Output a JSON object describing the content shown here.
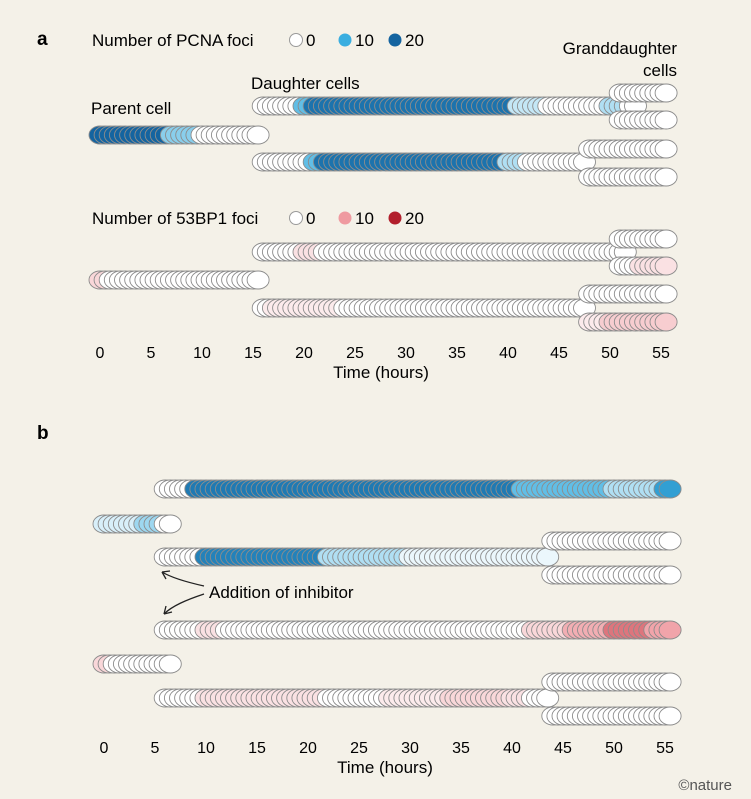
{
  "chart_data": [
    {
      "panel": "a",
      "type": "scatter",
      "xlabel": "Time (hours)",
      "xlim": [
        0,
        55
      ],
      "xticks": [
        0,
        5,
        10,
        15,
        20,
        25,
        30,
        35,
        40,
        45,
        50,
        55
      ],
      "legends": [
        {
          "title": "Number of PCNA foci",
          "entries": [
            {
              "label": "0",
              "color": "#ffffff"
            },
            {
              "label": "10",
              "color": "#3aaee0"
            },
            {
              "label": "20",
              "color": "#1464a0"
            }
          ]
        },
        {
          "title": "Number of 53BP1 foci",
          "entries": [
            {
              "label": "0",
              "color": "#ffffff"
            },
            {
              "label": "10",
              "color": "#ef9aa0"
            },
            {
              "label": "20",
              "color": "#b21f2c"
            }
          ]
        }
      ],
      "annotations": [
        "Parent cell",
        "Daughter cells",
        "Granddaughter cells"
      ],
      "series": [
        {
          "marker": "PCNA",
          "lineage": "parent",
          "start": 0,
          "end": 16,
          "segments": [
            [
              0,
              7,
              20
            ],
            [
              7,
              10,
              6
            ],
            [
              10,
              16,
              0
            ]
          ]
        },
        {
          "marker": "PCNA",
          "lineage": "daughter-1",
          "start": 16,
          "end": 53,
          "segments": [
            [
              16,
              20,
              0
            ],
            [
              20,
              21,
              8
            ],
            [
              21,
              41,
              18
            ],
            [
              41,
              44,
              3
            ],
            [
              44,
              50,
              0
            ],
            [
              50,
              52,
              4
            ],
            [
              52,
              53,
              0
            ]
          ]
        },
        {
          "marker": "PCNA",
          "lineage": "daughter-2",
          "start": 16,
          "end": 48,
          "segments": [
            [
              16,
              21,
              0
            ],
            [
              21,
              22,
              8
            ],
            [
              22,
              40,
              18
            ],
            [
              40,
              42,
              4
            ],
            [
              42,
              48,
              0
            ]
          ]
        },
        {
          "marker": "PCNA",
          "lineage": "granddaughter-1a",
          "start": 51,
          "end": 56,
          "segments": [
            [
              51,
              56,
              0
            ]
          ]
        },
        {
          "marker": "PCNA",
          "lineage": "granddaughter-1b",
          "start": 51,
          "end": 56,
          "segments": [
            [
              51,
              56,
              0
            ]
          ]
        },
        {
          "marker": "PCNA",
          "lineage": "granddaughter-2a",
          "start": 48,
          "end": 56,
          "segments": [
            [
              48,
              56,
              0
            ]
          ]
        },
        {
          "marker": "PCNA",
          "lineage": "granddaughter-2b",
          "start": 48,
          "end": 56,
          "segments": [
            [
              48,
              56,
              0
            ]
          ]
        },
        {
          "marker": "53BP1",
          "lineage": "parent",
          "start": 0,
          "end": 16,
          "segments": [
            [
              0,
              1,
              4
            ],
            [
              1,
              16,
              0
            ]
          ]
        },
        {
          "marker": "53BP1",
          "lineage": "daughter-1",
          "start": 16,
          "end": 52,
          "segments": [
            [
              16,
              20,
              0
            ],
            [
              20,
              22,
              3
            ],
            [
              22,
              52,
              0
            ]
          ]
        },
        {
          "marker": "53BP1",
          "lineage": "daughter-2",
          "start": 16,
          "end": 48,
          "segments": [
            [
              16,
              17,
              0
            ],
            [
              17,
              24,
              2
            ],
            [
              24,
              48,
              0
            ]
          ]
        },
        {
          "marker": "53BP1",
          "lineage": "granddaughter-1a",
          "start": 51,
          "end": 56,
          "segments": [
            [
              51,
              56,
              0
            ]
          ]
        },
        {
          "marker": "53BP1",
          "lineage": "granddaughter-1b",
          "start": 51,
          "end": 56,
          "segments": [
            [
              51,
              53,
              0
            ],
            [
              53,
              56,
              3
            ]
          ]
        },
        {
          "marker": "53BP1",
          "lineage": "granddaughter-2a",
          "start": 48,
          "end": 56,
          "segments": [
            [
              48,
              56,
              0
            ]
          ]
        },
        {
          "marker": "53BP1",
          "lineage": "granddaughter-2b",
          "start": 48,
          "end": 56,
          "segments": [
            [
              48,
              50,
              2
            ],
            [
              50,
              56,
              5
            ]
          ]
        }
      ]
    },
    {
      "panel": "b",
      "type": "scatter",
      "xlabel": "Time (hours)",
      "xlim": [
        0,
        55
      ],
      "xticks": [
        0,
        5,
        10,
        15,
        20,
        25,
        30,
        35,
        40,
        45,
        50,
        55
      ],
      "annotations": [
        "Addition of inhibitor"
      ],
      "series": [
        {
          "marker": "PCNA",
          "lineage": "parent",
          "start": 0,
          "end": 7,
          "segments": [
            [
              0,
              4,
              2
            ],
            [
              4,
              6,
              5
            ],
            [
              6,
              7,
              0
            ]
          ]
        },
        {
          "marker": "PCNA",
          "lineage": "daughter-1",
          "start": 6,
          "end": 56,
          "segments": [
            [
              6,
              9,
              0
            ],
            [
              9,
              41,
              17
            ],
            [
              41,
              50,
              8
            ],
            [
              50,
              55,
              4
            ],
            [
              55,
              56,
              12
            ]
          ]
        },
        {
          "marker": "PCNA",
          "lineage": "daughter-2",
          "start": 6,
          "end": 44,
          "segments": [
            [
              6,
              10,
              0
            ],
            [
              10,
              22,
              16
            ],
            [
              22,
              30,
              4
            ],
            [
              30,
              44,
              1
            ]
          ]
        },
        {
          "marker": "PCNA",
          "lineage": "granddaughter-2a",
          "start": 44,
          "end": 56,
          "segments": [
            [
              44,
              56,
              0
            ]
          ]
        },
        {
          "marker": "PCNA",
          "lineage": "granddaughter-2b",
          "start": 44,
          "end": 56,
          "segments": [
            [
              44,
              56,
              0
            ]
          ]
        },
        {
          "marker": "53BP1",
          "lineage": "parent",
          "start": 0,
          "end": 7,
          "segments": [
            [
              0,
              1,
              4
            ],
            [
              1,
              7,
              0
            ]
          ]
        },
        {
          "marker": "53BP1",
          "lineage": "daughter-1",
          "start": 6,
          "end": 56,
          "segments": [
            [
              6,
              10,
              0
            ],
            [
              10,
              12,
              3
            ],
            [
              12,
              42,
              0
            ],
            [
              42,
              46,
              4
            ],
            [
              46,
              50,
              8
            ],
            [
              50,
              54,
              13
            ],
            [
              54,
              56,
              9
            ]
          ]
        },
        {
          "marker": "53BP1",
          "lineage": "daughter-2",
          "start": 6,
          "end": 44,
          "segments": [
            [
              6,
              10,
              0
            ],
            [
              10,
              22,
              3
            ],
            [
              22,
              28,
              0
            ],
            [
              28,
              34,
              2
            ],
            [
              34,
              40,
              4
            ],
            [
              40,
              42,
              3
            ],
            [
              42,
              44,
              0
            ]
          ]
        },
        {
          "marker": "53BP1",
          "lineage": "granddaughter-2a",
          "start": 44,
          "end": 56,
          "segments": [
            [
              44,
              56,
              0
            ]
          ]
        },
        {
          "marker": "53BP1",
          "lineage": "granddaughter-2b",
          "start": 44,
          "end": 56,
          "segments": [
            [
              44,
              56,
              0
            ]
          ]
        }
      ]
    }
  ],
  "text": {
    "panel_a": "a",
    "panel_b": "b",
    "pcna_legend_title": "Number of PCNA foci",
    "bp_legend_title": "Number of 53BP1 foci",
    "leg_0": "0",
    "leg_10": "10",
    "leg_20": "20",
    "parent_cell": "Parent cell",
    "daughter_cells": "Daughter cells",
    "granddaughter_line1": "Granddaughter",
    "granddaughter_line2": "cells",
    "addition_of_inhibitor": "Addition of inhibitor",
    "time_axis_label": "Time (hours)",
    "credit": "©nature"
  },
  "ticks": [
    "0",
    "5",
    "10",
    "15",
    "20",
    "25",
    "30",
    "35",
    "40",
    "45",
    "50",
    "55"
  ]
}
